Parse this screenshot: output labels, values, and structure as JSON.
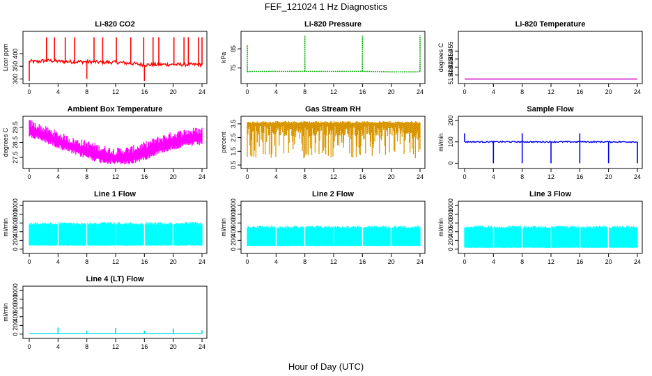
{
  "page": {
    "title": "FEF_121024  1 Hz Diagnostics",
    "xlabel": "Hour of Day (UTC)"
  },
  "chart_data": [
    {
      "type": "line",
      "title": "Li-820 CO2",
      "ylabel": "Licor ppm",
      "color": "#ff0000",
      "xlim": [
        0,
        24
      ],
      "ylim": [
        290,
        480
      ],
      "x_ticks": [
        0,
        4,
        8,
        12,
        16,
        20,
        24
      ],
      "y_ticks": [
        300,
        350,
        400
      ],
      "series": [
        {
          "x": [
            0,
            1,
            2,
            3,
            4,
            6,
            8,
            10,
            12,
            14,
            16,
            17,
            18,
            20,
            22,
            24
          ],
          "y": [
            370,
            368,
            372,
            372,
            370,
            368,
            368,
            366,
            366,
            362,
            356,
            356,
            357,
            357,
            357,
            357
          ]
        }
      ],
      "spikes_up": [
        {
          "x": 2.4,
          "y": 465
        },
        {
          "x": 3.5,
          "y": 465
        },
        {
          "x": 5.0,
          "y": 465
        },
        {
          "x": 6.3,
          "y": 465
        },
        {
          "x": 9.0,
          "y": 465
        },
        {
          "x": 10.2,
          "y": 465
        },
        {
          "x": 12.1,
          "y": 465
        },
        {
          "x": 14.1,
          "y": 465
        },
        {
          "x": 15.9,
          "y": 465
        },
        {
          "x": 17.2,
          "y": 465
        },
        {
          "x": 18.0,
          "y": 465
        },
        {
          "x": 20.1,
          "y": 465
        },
        {
          "x": 21.5,
          "y": 465
        },
        {
          "x": 22.1,
          "y": 465
        },
        {
          "x": 23.5,
          "y": 465
        },
        {
          "x": 24.0,
          "y": 465
        }
      ],
      "spikes_down": [
        {
          "x": 0.0,
          "y": 292
        },
        {
          "x": 8.0,
          "y": 300
        },
        {
          "x": 16.0,
          "y": 292
        }
      ]
    },
    {
      "type": "line",
      "title": "Li-820 Pressure",
      "ylabel": "kPa",
      "color": "#00aa00",
      "xlim": [
        0,
        24
      ],
      "ylim": [
        68,
        93
      ],
      "x_ticks": [
        0,
        4,
        8,
        12,
        16,
        20,
        24
      ],
      "y_ticks": [
        75,
        85
      ],
      "series": [
        {
          "x": [
            0,
            0.3,
            4,
            8,
            12,
            16,
            18.5,
            20,
            23.7,
            24
          ],
          "y": [
            73,
            73.2,
            73.3,
            73.3,
            73.3,
            73.3,
            73.1,
            73.0,
            73.0,
            73.2
          ]
        }
      ],
      "spikes_up": [
        {
          "x": 0.0,
          "y": 87
        },
        {
          "x": 8.0,
          "y": 92
        },
        {
          "x": 16.0,
          "y": 92
        },
        {
          "x": 24.0,
          "y": 92
        }
      ],
      "spikes_down": []
    },
    {
      "type": "line",
      "title": "Li-820 Temperature",
      "ylabel": "degrees C",
      "color": "#cc00cc",
      "xlim": [
        0,
        24
      ],
      "ylim": [
        51.436,
        51.466
      ],
      "x_ticks": [
        0,
        4,
        8,
        12,
        16,
        20,
        24
      ],
      "y_ticks": [
        51.44,
        51.445,
        51.45,
        51.455
      ],
      "y_tick_labels": [
        "51.440",
        "51.445",
        "51.450",
        "51.455"
      ],
      "series": [
        {
          "x": [
            0,
            22.7,
            22.7,
            22.75,
            22.75,
            24
          ],
          "y": [
            51.4375,
            51.4375,
            51.466,
            51.466,
            51.4375,
            51.4375
          ]
        }
      ],
      "spikes_up": [],
      "spikes_down": []
    },
    {
      "type": "area",
      "title": "Ambient Box Temperature",
      "ylabel": "degrees C",
      "color": "#ff00ff",
      "xlim": [
        0,
        24
      ],
      "ylim": [
        26.9,
        30.1
      ],
      "x_ticks": [
        0,
        4,
        8,
        12,
        16,
        20,
        24
      ],
      "y_ticks": [
        27.5,
        28.5,
        29.5
      ],
      "y_tick_labels": [
        "27.5",
        "28.5",
        "29.5"
      ],
      "band": {
        "x": [
          0,
          2,
          4,
          6,
          8,
          10,
          12,
          14,
          16,
          18,
          20,
          22,
          24
        ],
        "lower": [
          29.1,
          28.8,
          28.4,
          28.0,
          27.7,
          27.4,
          27.3,
          27.3,
          27.6,
          28.0,
          28.3,
          28.5,
          28.6
        ],
        "upper": [
          29.8,
          29.4,
          29.0,
          28.6,
          28.4,
          28.1,
          27.9,
          28.0,
          28.3,
          28.7,
          29.0,
          29.2,
          29.3
        ]
      }
    },
    {
      "type": "area",
      "title": "Gas Stream RH",
      "ylabel": "percent",
      "color": "#e6a000",
      "xlim": [
        0,
        24
      ],
      "ylim": [
        0.4,
        3.9
      ],
      "x_ticks": [
        0,
        4,
        8,
        12,
        16,
        20,
        24
      ],
      "y_ticks": [
        0.5,
        1.5,
        2.5,
        3.5
      ],
      "y_tick_labels": [
        "0.5",
        "1.5",
        "2.5",
        "3.5"
      ],
      "band": {
        "x": [
          0,
          24
        ],
        "lower": [
          1.0,
          1.0
        ],
        "upper": [
          3.6,
          3.6
        ]
      }
    },
    {
      "type": "line",
      "title": "Sample Flow",
      "ylabel": "ml/min",
      "color": "#0000ee",
      "xlim": [
        0,
        24
      ],
      "ylim": [
        -15,
        210
      ],
      "x_ticks": [
        0,
        4,
        8,
        12,
        16,
        20,
        24
      ],
      "y_ticks": [
        0,
        100,
        200
      ],
      "series": [
        {
          "x": [
            0,
            24
          ],
          "y": [
            100,
            100
          ]
        }
      ],
      "spikes_up": [
        {
          "x": 0.0,
          "y": 140
        },
        {
          "x": 8.0,
          "y": 140
        },
        {
          "x": 16.0,
          "y": 140
        }
      ],
      "spikes_down": [
        {
          "x": 4.0,
          "y": 0
        },
        {
          "x": 8.0,
          "y": 0
        },
        {
          "x": 12.0,
          "y": 0
        },
        {
          "x": 16.0,
          "y": 0
        },
        {
          "x": 20.0,
          "y": 0
        },
        {
          "x": 24.0,
          "y": 0
        }
      ]
    },
    {
      "type": "area",
      "title": "Line 1 Flow",
      "ylabel": "ml/min",
      "color": "#00ffff",
      "xlim": [
        0,
        24
      ],
      "ylim": [
        -50,
        1050
      ],
      "x_ticks": [
        0,
        4,
        8,
        12,
        16,
        20,
        24
      ],
      "y_ticks": [
        0,
        200,
        400,
        600,
        800,
        1000
      ],
      "band": {
        "x": [
          0,
          24
        ],
        "lower": [
          80,
          80
        ],
        "upper": [
          620,
          620
        ]
      },
      "gaps": [
        4,
        8,
        12,
        16,
        20
      ]
    },
    {
      "type": "area",
      "title": "Line 2 Flow",
      "ylabel": "ml/min",
      "color": "#00ffff",
      "xlim": [
        0,
        24
      ],
      "ylim": [
        -50,
        1050
      ],
      "x_ticks": [
        0,
        4,
        8,
        12,
        16,
        20,
        24
      ],
      "y_ticks": [
        0,
        200,
        400,
        600,
        800,
        1000
      ],
      "band": {
        "x": [
          0,
          24
        ],
        "lower": [
          70,
          70
        ],
        "upper": [
          540,
          540
        ]
      },
      "gaps": [
        4,
        8,
        12,
        16,
        20
      ]
    },
    {
      "type": "area",
      "title": "Line 3 Flow",
      "ylabel": "ml/min",
      "color": "#00ffff",
      "xlim": [
        0,
        24
      ],
      "ylim": [
        -50,
        1050
      ],
      "x_ticks": [
        0,
        4,
        8,
        12,
        16,
        20,
        24
      ],
      "y_ticks": [
        0,
        200,
        400,
        600,
        800,
        1000
      ],
      "band": {
        "x": [
          0,
          24
        ],
        "lower": [
          30,
          30
        ],
        "upper": [
          540,
          540
        ]
      },
      "gaps": [
        4,
        8,
        12,
        16,
        20
      ]
    },
    {
      "type": "line",
      "title": "Line 4 (LT) Flow",
      "ylabel": "ml/min",
      "color": "#00dddd",
      "xlim": [
        0,
        24
      ],
      "ylim": [
        -50,
        1050
      ],
      "x_ticks": [
        0,
        4,
        8,
        12,
        16,
        20,
        24
      ],
      "y_ticks": [
        0,
        200,
        400,
        600,
        800,
        1000
      ],
      "series": [
        {
          "x": [
            0,
            24
          ],
          "y": [
            10,
            10
          ]
        }
      ],
      "spikes_up": [
        {
          "x": 4.0,
          "y": 150
        },
        {
          "x": 8.0,
          "y": 80
        },
        {
          "x": 12.0,
          "y": 140
        },
        {
          "x": 16.0,
          "y": 80
        },
        {
          "x": 20.0,
          "y": 130
        },
        {
          "x": 24.0,
          "y": 90
        }
      ],
      "spikes_down": []
    }
  ]
}
